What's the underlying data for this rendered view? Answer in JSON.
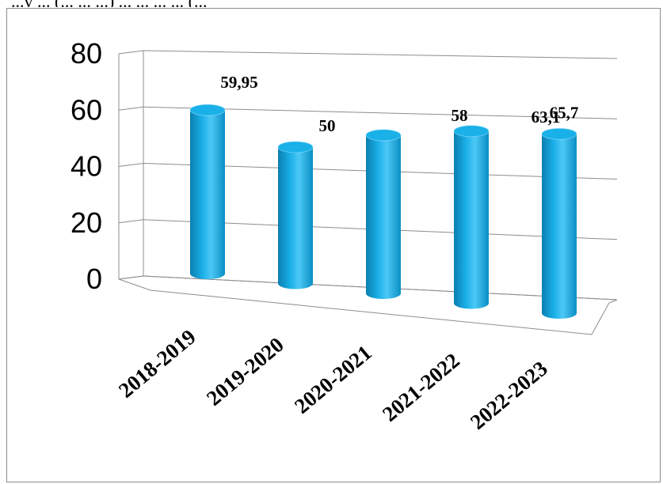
{
  "header_fragment": "...y ... (... ... ...) ... ... ... ... (...",
  "chart_data": {
    "type": "bar",
    "style": "3d-cylinder",
    "categories": [
      "2018-2019",
      "2019-2020",
      "2020-2021",
      "2021-2022",
      "2022-2023"
    ],
    "values": [
      59.95,
      50,
      58,
      63.1,
      65.7
    ],
    "data_labels": [
      "59,95",
      "50",
      "58",
      "63,1",
      "65,7"
    ],
    "y_ticks": [
      "0",
      "20",
      "40",
      "60",
      "80"
    ],
    "ylim": [
      0,
      80
    ],
    "grid": true,
    "legend": "none",
    "colors": {
      "bar": "#1ab0e8",
      "bar_dark": "#0a7fb0",
      "bar_light": "#8fdcff",
      "grid": "#8c8c8c"
    }
  }
}
